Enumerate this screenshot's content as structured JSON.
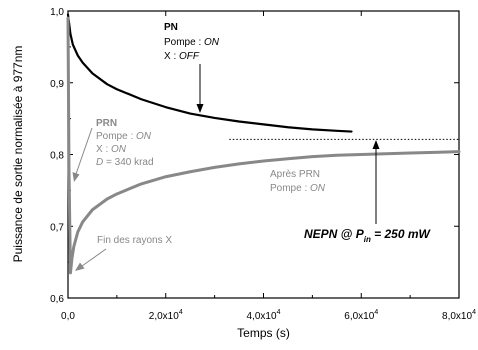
{
  "chart_data": {
    "type": "line",
    "xlabel": "Temps (s)",
    "ylabel": "Puissance de sortie normalisée à 977nm",
    "xlim": [
      0,
      80000
    ],
    "ylim": [
      0.6,
      1.0
    ],
    "x_ticks": [
      {
        "value": 0,
        "mant": "0,0",
        "exp": ""
      },
      {
        "value": 20000,
        "mant": "2,0x10",
        "exp": "4"
      },
      {
        "value": 40000,
        "mant": "4,0x10",
        "exp": "4"
      },
      {
        "value": 60000,
        "mant": "6,0x10",
        "exp": "4"
      },
      {
        "value": 80000,
        "mant": "8,0x10",
        "exp": "4"
      }
    ],
    "y_ticks": [
      {
        "value": 0.6,
        "label": "0,6"
      },
      {
        "value": 0.7,
        "label": "0,7"
      },
      {
        "value": 0.8,
        "label": "0,8"
      },
      {
        "value": 0.9,
        "label": "0,9"
      },
      {
        "value": 1.0,
        "label": "1,0"
      }
    ],
    "series": [
      {
        "color": "#000000",
        "x": [
          0,
          500,
          1000,
          2000,
          3000,
          5000,
          8000,
          10000,
          15000,
          20000,
          25000,
          30000,
          35000,
          40000,
          45000,
          50000,
          55000,
          58000
        ],
        "y": [
          0.995,
          0.968,
          0.953,
          0.938,
          0.928,
          0.913,
          0.898,
          0.891,
          0.877,
          0.866,
          0.857,
          0.851,
          0.846,
          0.842,
          0.838,
          0.835,
          0.833,
          0.832
        ]
      },
      {
        "color": "#888888",
        "x": [
          0,
          200,
          500,
          800,
          1200,
          2000,
          3000,
          5000,
          8000,
          10000,
          15000,
          20000,
          25000,
          30000,
          35000,
          40000,
          45000,
          50000,
          55000,
          60000,
          65000,
          70000,
          75000,
          80000
        ],
        "y": [
          0.99,
          0.78,
          0.635,
          0.655,
          0.672,
          0.692,
          0.706,
          0.723,
          0.738,
          0.745,
          0.759,
          0.769,
          0.776,
          0.782,
          0.787,
          0.791,
          0.794,
          0.797,
          0.799,
          0.8,
          0.801,
          0.802,
          0.803,
          0.804
        ]
      }
    ],
    "reference_line": {
      "y": 0.821,
      "x_start": 33000,
      "x_end": 80000
    },
    "annotations": {
      "pn": {
        "title": "PN",
        "line1": "Pompe : ",
        "line1_val": "ON",
        "line2": "X : ",
        "line2_val": "OFF"
      },
      "prn": {
        "title": "PRN",
        "line1": "Pompe : ",
        "line1_val": "ON",
        "line2": "X : ",
        "line2_val": "ON",
        "line3_var": "D",
        "line3": " = 340 krad"
      },
      "fin": {
        "text": "Fin des rayons X"
      },
      "apres": {
        "line1": "Après PRN",
        "line2": "Pompe : ",
        "line2_val": "ON"
      },
      "nepn": {
        "pre": "NEPN @ P",
        "sub": "in",
        "post": " = 250 mW"
      }
    }
  }
}
